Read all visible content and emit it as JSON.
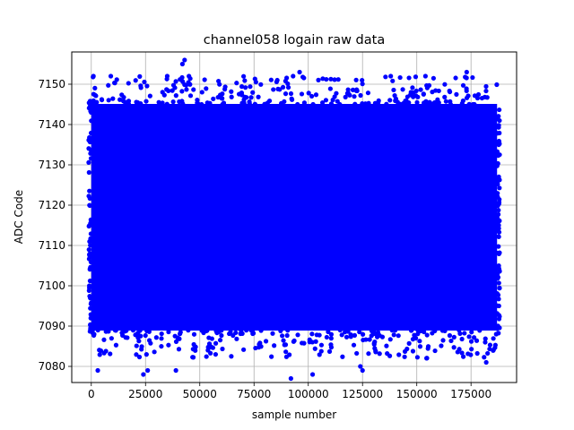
{
  "chart_data": {
    "type": "scatter",
    "title": "channel058 logain raw data",
    "xlabel": "sample number",
    "ylabel": "ADC Code",
    "xlim": [
      -9000,
      196000
    ],
    "ylim": [
      7076,
      7158
    ],
    "x_ticks": [
      0,
      25000,
      50000,
      75000,
      100000,
      125000,
      150000,
      175000
    ],
    "y_ticks": [
      7080,
      7090,
      7100,
      7110,
      7120,
      7130,
      7140,
      7150
    ],
    "grid": true,
    "marker_color": "#0000ff",
    "series": [
      {
        "x_range": [
          0,
          187000
        ],
        "dense_band": [
          7088,
          7146
        ],
        "outliers": [
          {
            "x": 1000,
            "y": 7152
          },
          {
            "x": 3000,
            "y": 7079
          },
          {
            "x": 9000,
            "y": 7152
          },
          {
            "x": 24000,
            "y": 7078
          },
          {
            "x": 26000,
            "y": 7079
          },
          {
            "x": 35000,
            "y": 7152
          },
          {
            "x": 39000,
            "y": 7079
          },
          {
            "x": 42000,
            "y": 7155
          },
          {
            "x": 43000,
            "y": 7156
          },
          {
            "x": 45000,
            "y": 7152
          },
          {
            "x": 92000,
            "y": 7077
          },
          {
            "x": 93000,
            "y": 7152
          },
          {
            "x": 96000,
            "y": 7153
          },
          {
            "x": 102000,
            "y": 7078
          },
          {
            "x": 124000,
            "y": 7080
          },
          {
            "x": 125000,
            "y": 7079
          },
          {
            "x": 138000,
            "y": 7152
          },
          {
            "x": 154000,
            "y": 7152
          },
          {
            "x": 173000,
            "y": 7153
          },
          {
            "x": 182000,
            "y": 7081
          }
        ]
      }
    ]
  }
}
